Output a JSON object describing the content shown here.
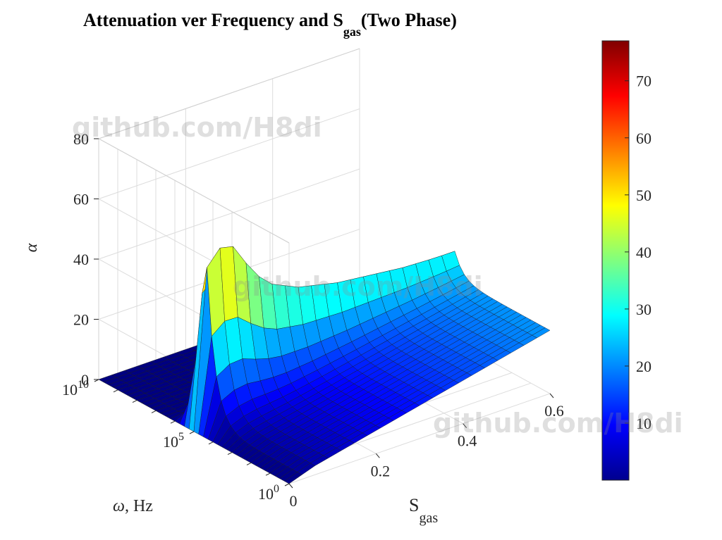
{
  "chart_data": {
    "type": "surface",
    "title_main": "Attenuation ver Frequency and S",
    "title_sub": "gas",
    "title_tail": "(Two Phase)",
    "xlabel_main": "S",
    "xlabel_sub": "gas",
    "ylabel_sym": "ω",
    "ylabel_rest": ", Hz",
    "zlabel": "α",
    "x_ticks": [
      "0",
      "0.2",
      "0.4",
      "0.6"
    ],
    "x_range": [
      0,
      0.6
    ],
    "y_tick_base": "10",
    "y_tick_exps": [
      "0",
      "5",
      "10"
    ],
    "y_range_log10": [
      0,
      10
    ],
    "y_scale": "log",
    "z_ticks": [
      "0",
      "20",
      "40",
      "60",
      "80"
    ],
    "z_range": [
      0,
      80
    ],
    "colorbar_ticks": [
      "10",
      "20",
      "30",
      "40",
      "50",
      "60",
      "70"
    ],
    "colorbar_range": [
      0,
      77
    ],
    "colormap": "jet",
    "grid": true,
    "s_gas": [
      0.0,
      0.03,
      0.06,
      0.09,
      0.12,
      0.15,
      0.18,
      0.21,
      0.24,
      0.27,
      0.3,
      0.33,
      0.36,
      0.39,
      0.42,
      0.45,
      0.48,
      0.51,
      0.54,
      0.57,
      0.6
    ],
    "peak_log10_omega": 5.0,
    "peak_alpha": [
      0,
      53,
      58,
      57,
      50,
      44,
      40,
      38,
      36,
      35,
      34,
      33,
      32.5,
      32,
      31.5,
      31,
      30.5,
      30.3,
      30.1,
      30,
      30
    ],
    "plateau_alpha_omega_lt_1e5": [
      0,
      1.5,
      3,
      4,
      5,
      6,
      7,
      8,
      9,
      10,
      11,
      12,
      13,
      14,
      15,
      16,
      17,
      18,
      19,
      20,
      21
    ]
  },
  "watermarks": [
    "github.com/H8di",
    "github.com/H8di",
    "github.com/H8di"
  ]
}
